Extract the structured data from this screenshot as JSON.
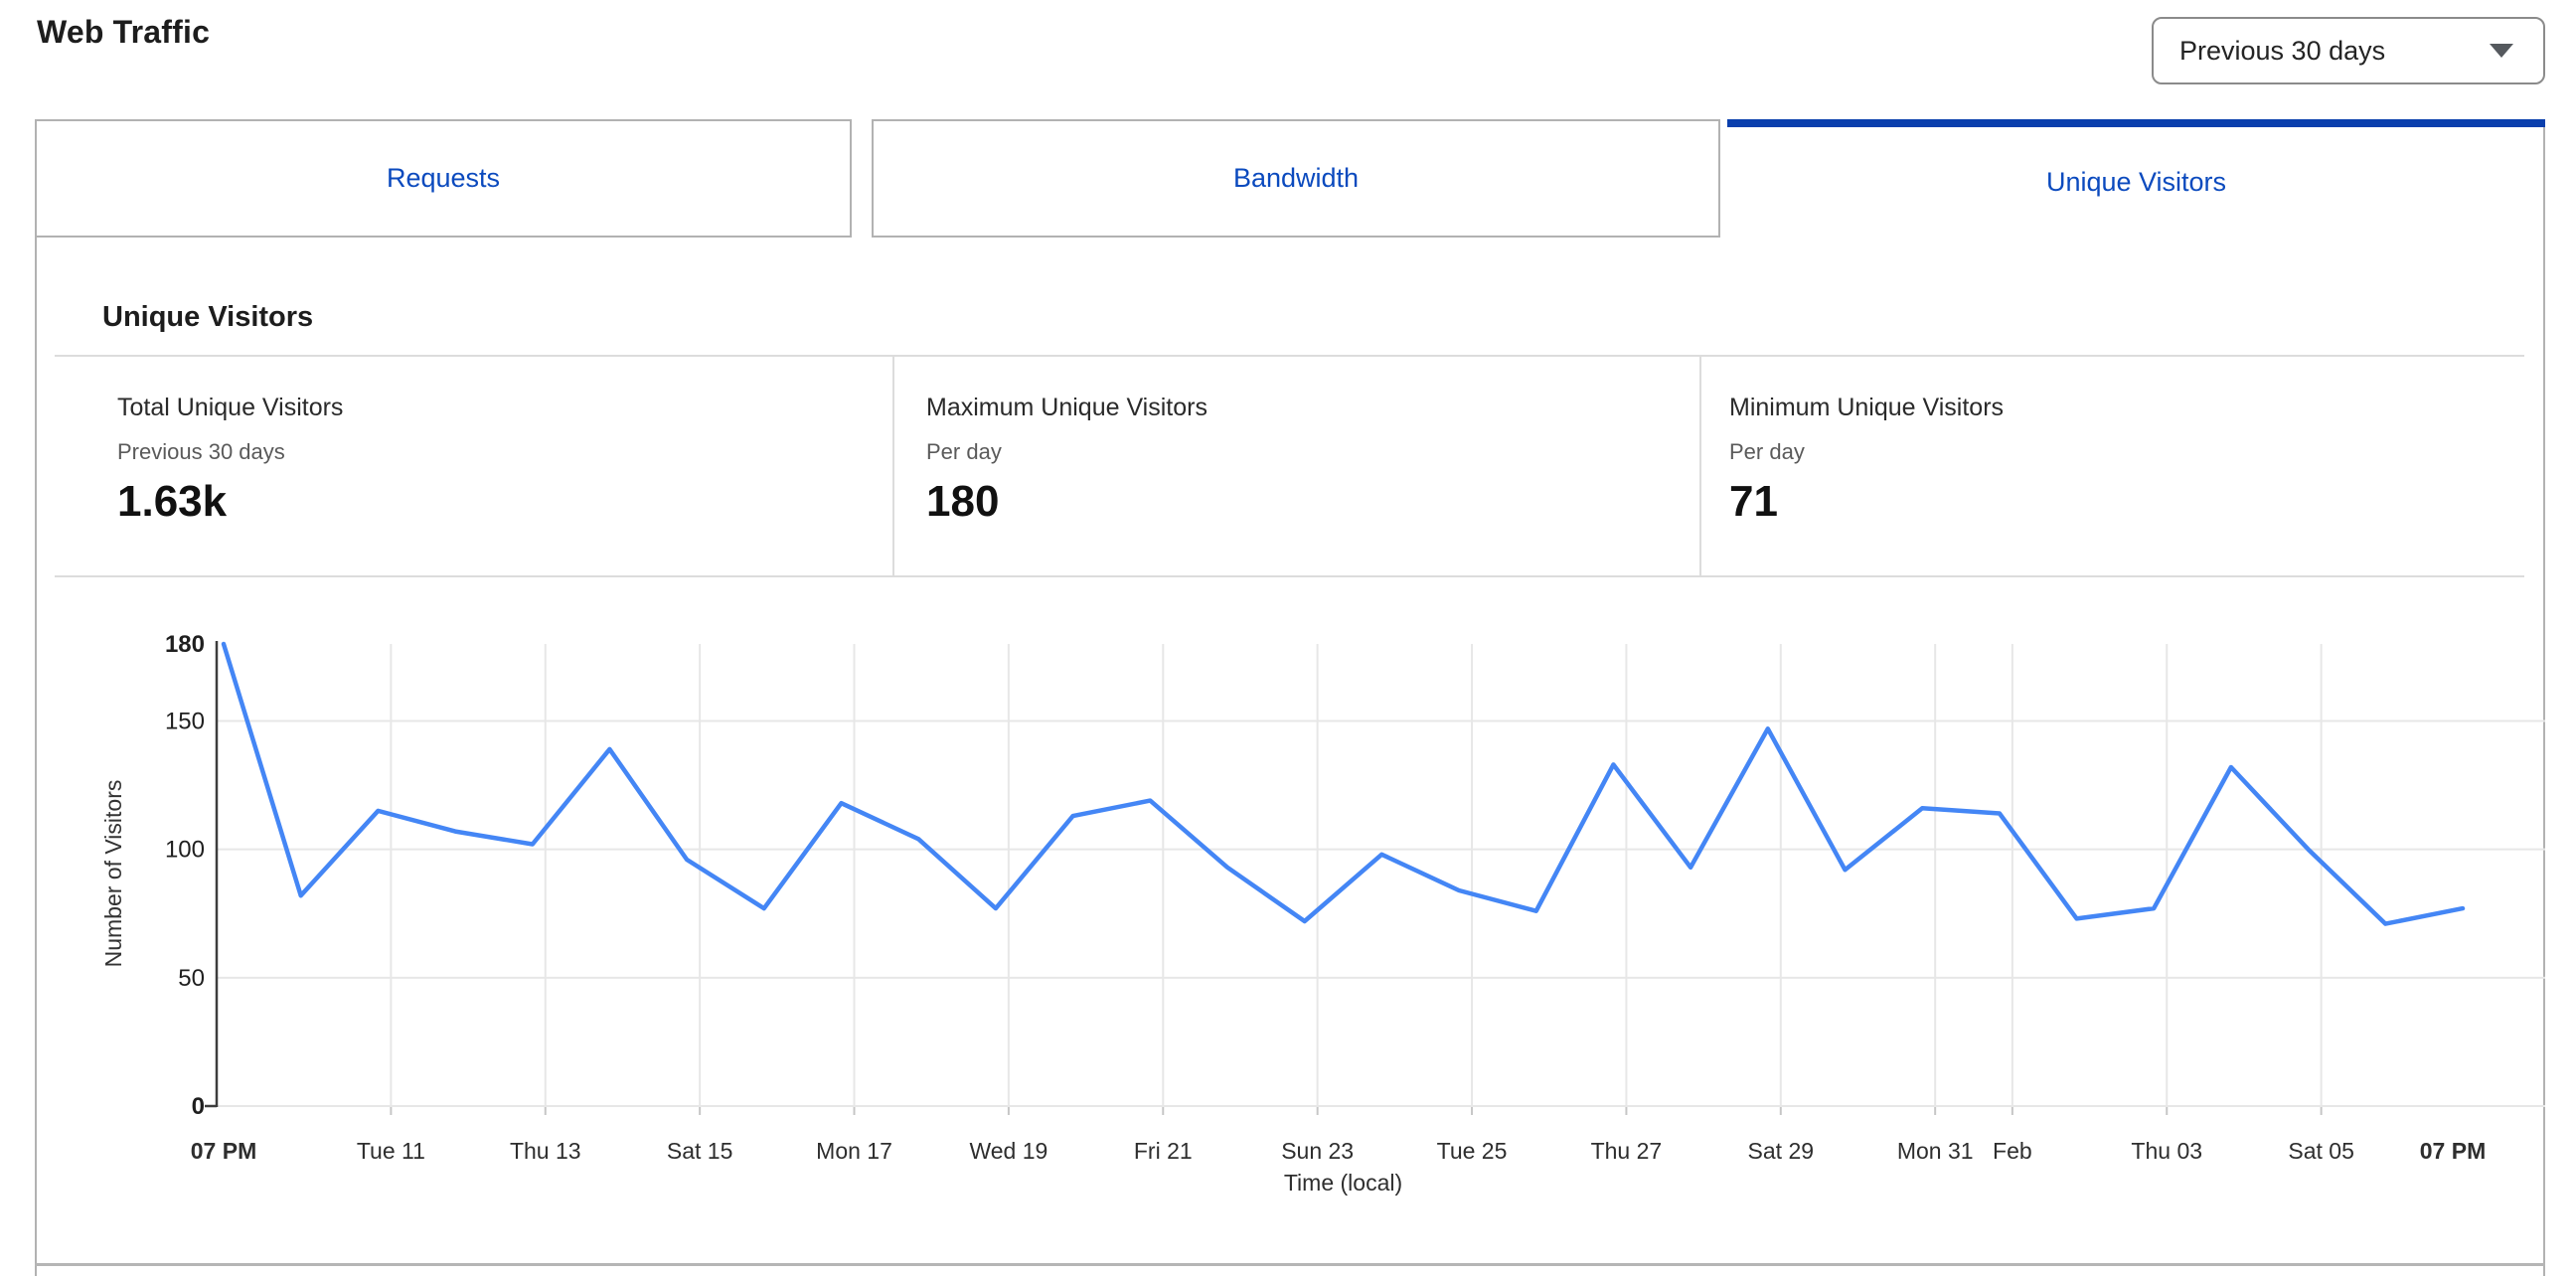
{
  "page": {
    "title": "Web Traffic"
  },
  "time_range_select": {
    "value": "Previous 30 days",
    "icon": "chevron-down-icon"
  },
  "tabs": [
    {
      "label": "Requests",
      "active": false
    },
    {
      "label": "Bandwidth",
      "active": false
    },
    {
      "label": "Unique Visitors",
      "active": true
    }
  ],
  "section": {
    "heading": "Unique Visitors"
  },
  "stats": [
    {
      "title": "Total Unique Visitors",
      "subtitle": "Previous 30 days",
      "value": "1.63k"
    },
    {
      "title": "Maximum Unique Visitors",
      "subtitle": "Per day",
      "value": "180"
    },
    {
      "title": "Minimum Unique Visitors",
      "subtitle": "Per day",
      "value": "71"
    }
  ],
  "colors": {
    "tab_label_blue": "#0b4abe",
    "active_tab_bar": "#0a3fad",
    "line_blue": "#4486f5",
    "gridline": "#e7e7e7",
    "axis": "#3d3d3d"
  },
  "chart_data": {
    "type": "line",
    "title": "Unique Visitors",
    "xlabel": "Time (local)",
    "ylabel": "Number of Visitors",
    "ylim": [
      0,
      180
    ],
    "grid": true,
    "legend": "none",
    "y_ticks": [
      {
        "value": 180,
        "bold": true
      },
      {
        "value": 150
      },
      {
        "value": 100
      },
      {
        "value": 50
      },
      {
        "value": 0,
        "bold": true
      }
    ],
    "x_ticks": [
      {
        "point": 1,
        "label": "07 PM",
        "bold": true,
        "grid": false
      },
      {
        "point": 3,
        "label": "Tue 11"
      },
      {
        "point": 5,
        "label": "Thu 13"
      },
      {
        "point": 7,
        "label": "Sat 15"
      },
      {
        "point": 9,
        "label": "Mon 17"
      },
      {
        "point": 11,
        "label": "Wed 19"
      },
      {
        "point": 13,
        "label": "Fri 21"
      },
      {
        "point": 15,
        "label": "Sun 23"
      },
      {
        "point": 17,
        "label": "Tue 25"
      },
      {
        "point": 19,
        "label": "Thu 27"
      },
      {
        "point": 21,
        "label": "Sat 29"
      },
      {
        "point": 23,
        "label": "Mon 31"
      },
      {
        "point": 24,
        "label": "Feb"
      },
      {
        "point": 26,
        "label": "Thu 03"
      },
      {
        "point": 28,
        "label": "Sat 05"
      },
      {
        "point": 30,
        "label": "07 PM",
        "bold": true,
        "grid": false
      }
    ],
    "series": [
      {
        "name": "Unique Visitors",
        "color": "#4486f5",
        "values": [
          180,
          82,
          115,
          107,
          102,
          139,
          96,
          77,
          118,
          104,
          77,
          113,
          119,
          93,
          72,
          98,
          84,
          76,
          133,
          93,
          147,
          92,
          116,
          114,
          73,
          77,
          132,
          100,
          71,
          77
        ]
      }
    ]
  }
}
